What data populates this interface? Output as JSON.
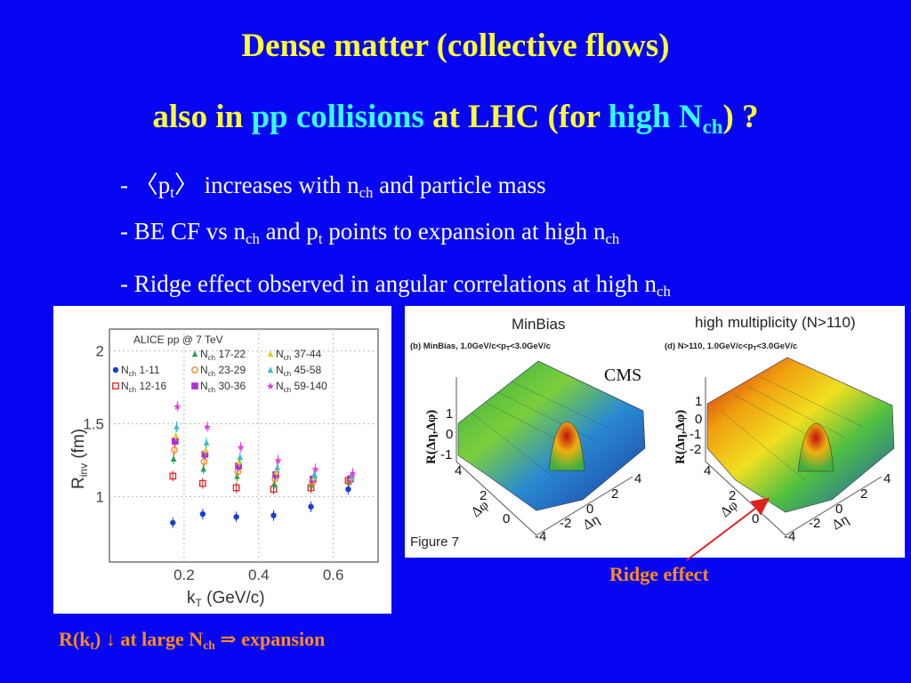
{
  "slide": {
    "title_line1": "Dense matter (collective flows)",
    "title_line2": {
      "a": "also in ",
      "b": "pp collisions",
      "c": " at LHC (for ",
      "d": "high N",
      "d_sub": "ch",
      "e": ") ?"
    },
    "bullets": [
      {
        "a": "- 〈p",
        "a_sub": "t",
        "b": "〉 increases with n",
        "b_sub": "ch",
        "c": " and particle mass"
      },
      {
        "a": "- BE CF vs n",
        "a_sub": "ch",
        "b": " and p",
        "b_sub": "t",
        "c": " points to expansion at high n",
        "c_sub": "ch"
      },
      {
        "a": "- Ridge effect observed in angular correlations at high n",
        "a_sub": "ch"
      }
    ],
    "left_caption": {
      "a": "R(k",
      "a_sub": "t",
      "b": ") ↓ at large N",
      "b_sub": "ch",
      "c": " ⇒ expansion"
    },
    "ridge_label": "Ridge effect",
    "arrow_color": "#e02020"
  },
  "alice_plot": {
    "header": "ALICE pp @ 7 TeV",
    "ylabel": "R",
    "ylabel_sub": "inv",
    "ylabel_unit": " (fm)",
    "xlabel": "k",
    "xlabel_sub": "T",
    "xlabel_unit": " (GeV/c)",
    "yticks": [
      "1",
      "1.5",
      "2"
    ],
    "xticks": [
      "0.2",
      "0.4",
      "0.6"
    ],
    "legend": [
      {
        "sym": "N",
        "sub": "ch",
        "range": " 1-11",
        "color": "#1a3fd0",
        "marker": "dot"
      },
      {
        "sym": "N",
        "sub": "ch",
        "range": " 12-16",
        "color": "#e02020",
        "marker": "square"
      },
      {
        "sym": "N",
        "sub": "ch",
        "range": " 17-22",
        "color": "#22a34a",
        "marker": "triangle"
      },
      {
        "sym": "N",
        "sub": "ch",
        "range": " 23-29",
        "color": "#ff8020",
        "marker": "circle"
      },
      {
        "sym": "N",
        "sub": "ch",
        "range": " 30-36",
        "color": "#b030d0",
        "marker": "square"
      },
      {
        "sym": "N",
        "sub": "ch",
        "range": " 37-44",
        "color": "#e0d020",
        "marker": "triangle"
      },
      {
        "sym": "N",
        "sub": "ch",
        "range": " 45-58",
        "color": "#30c0d0",
        "marker": "triangle"
      },
      {
        "sym": "N",
        "sub": "ch",
        "range": " 59-140",
        "color": "#e040e0",
        "marker": "star"
      }
    ]
  },
  "chart_data": {
    "type": "scatter",
    "x_label": "kT (GeV/c)",
    "y_label": "Rinv (fm)",
    "xlim": [
      0.0,
      0.72
    ],
    "ylim": [
      0.55,
      2.15
    ],
    "series": [
      {
        "name": "Nch 1-11",
        "x": [
          0.17,
          0.25,
          0.34,
          0.44,
          0.54,
          0.64
        ],
        "y": [
          0.82,
          0.88,
          0.86,
          0.87,
          0.93,
          1.05
        ]
      },
      {
        "name": "Nch 12-16",
        "x": [
          0.17,
          0.25,
          0.34,
          0.44,
          0.54,
          0.64
        ],
        "y": [
          1.14,
          1.09,
          1.06,
          1.05,
          1.06,
          1.11
        ]
      },
      {
        "name": "Nch 17-22",
        "x": [
          0.172,
          0.252,
          0.342,
          0.442,
          0.542,
          0.642
        ],
        "y": [
          1.26,
          1.19,
          1.14,
          1.09,
          1.08,
          1.1
        ]
      },
      {
        "name": "Nch 23-29",
        "x": [
          0.174,
          0.254,
          0.344,
          0.444,
          0.544,
          0.644
        ],
        "y": [
          1.32,
          1.24,
          1.17,
          1.12,
          1.1,
          1.11
        ]
      },
      {
        "name": "Nch 30-36",
        "x": [
          0.176,
          0.256,
          0.346,
          0.446,
          0.546,
          0.646
        ],
        "y": [
          1.38,
          1.29,
          1.21,
          1.15,
          1.12,
          1.12
        ]
      },
      {
        "name": "Nch 37-44",
        "x": [
          0.178,
          0.258,
          0.348,
          0.448,
          0.548,
          0.648
        ],
        "y": [
          1.42,
          1.32,
          1.24,
          1.17,
          1.13,
          1.13
        ]
      },
      {
        "name": "Nch 45-58",
        "x": [
          0.18,
          0.26,
          0.35,
          0.45,
          0.55,
          0.65
        ],
        "y": [
          1.48,
          1.37,
          1.27,
          1.2,
          1.15,
          1.14
        ]
      },
      {
        "name": "Nch 59-140",
        "x": [
          0.182,
          0.262,
          0.352,
          0.452,
          0.552,
          0.652
        ],
        "y": [
          1.62,
          1.48,
          1.34,
          1.25,
          1.19,
          1.16
        ]
      }
    ]
  },
  "cms_plot": {
    "title_left": "MinBias",
    "title_right": "high multiplicity (N>110)",
    "sub_left": "(b) MinBias, 1.0GeV/c<p",
    "sub_left_sub": "T",
    "sub_left_end": "<3.0GeV/c",
    "sub_right": "(d) N>110, 1.0GeV/c<p",
    "sub_right_sub": "T",
    "sub_right_end": "<3.0GeV/c",
    "cms_label": "CMS",
    "figure_label": "Figure 7",
    "zlabel": "R(Δη,Δφ)",
    "left_zticks": [
      "1",
      "0",
      "-1"
    ],
    "right_zticks": [
      "1",
      "0",
      "-1",
      "-2"
    ],
    "phi_label": "Δφ",
    "eta_label": "Δη",
    "phi_ticks": [
      "4",
      "2",
      "0"
    ],
    "eta_ticks": [
      "4",
      "2",
      "0",
      "-2",
      "-4"
    ]
  }
}
